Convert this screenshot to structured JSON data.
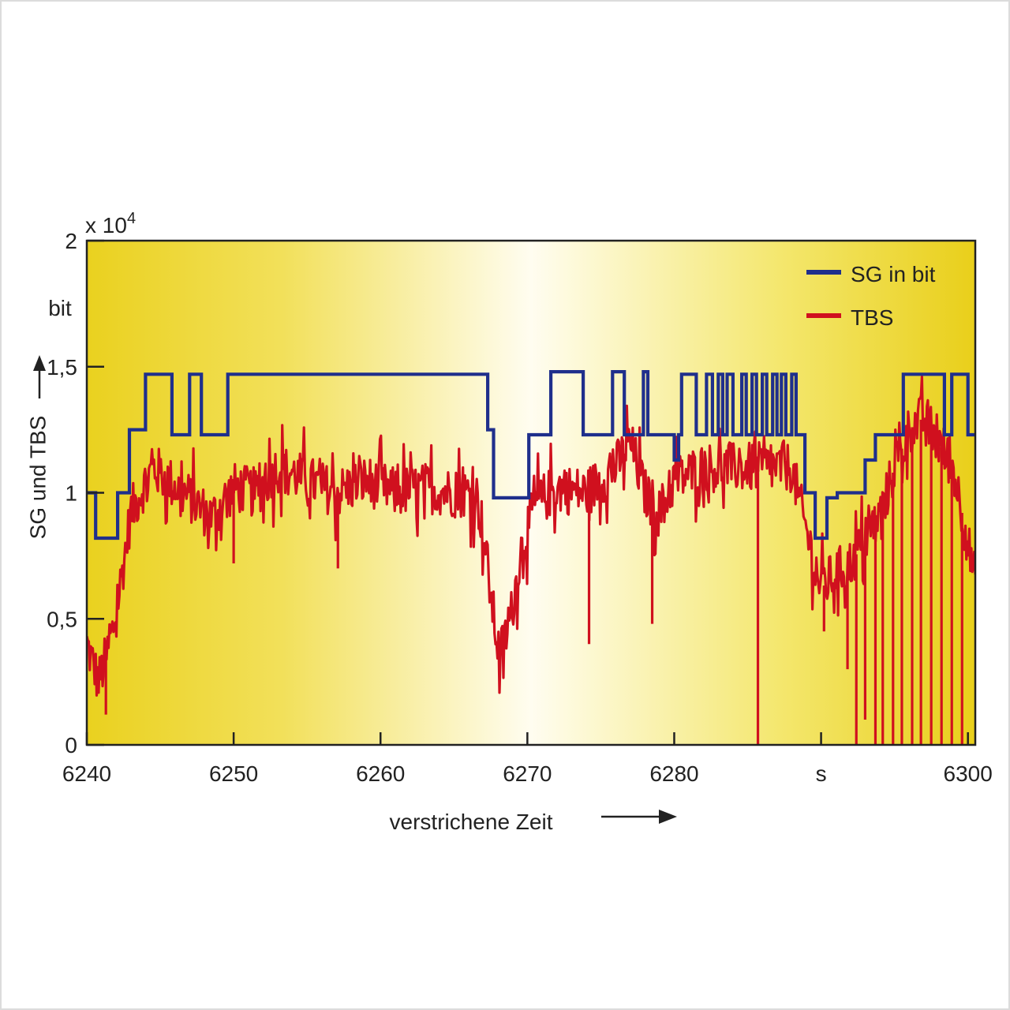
{
  "chart_data": {
    "type": "line",
    "exponent_label": {
      "base": "x 10",
      "power": "4"
    },
    "yunit": "bit",
    "ylabel": "SG und TBS",
    "xlabel": "verstrichene Zeit",
    "xunit": "s",
    "xlim": [
      6240,
      6300.5
    ],
    "ylim": [
      0,
      2
    ],
    "y_ticks": [
      {
        "value": 0,
        "label": "0"
      },
      {
        "value": 0.5,
        "label": "0,5"
      },
      {
        "value": 1,
        "label": "1"
      },
      {
        "value": 1.5,
        "label": "1,5"
      },
      {
        "value": 2,
        "label": "2"
      }
    ],
    "x_ticks": [
      {
        "value": 6240,
        "label": "6240"
      },
      {
        "value": 6250,
        "label": "6250"
      },
      {
        "value": 6260,
        "label": "6260"
      },
      {
        "value": 6270,
        "label": "6270"
      },
      {
        "value": 6280,
        "label": "6280"
      },
      {
        "value": 6290,
        "label": "s"
      },
      {
        "value": 6300,
        "label": "6300"
      }
    ],
    "grid": false,
    "legend": "top-right",
    "background": "yellow gradient, light in center",
    "series": [
      {
        "name": "SG in bit",
        "color": "#1f2f8c",
        "style": "step",
        "points": [
          [
            6240,
            1.0
          ],
          [
            6240.6,
            0.82
          ],
          [
            6242.1,
            1.0
          ],
          [
            6242.9,
            1.25
          ],
          [
            6244.0,
            1.47
          ],
          [
            6245.8,
            1.23
          ],
          [
            6247.0,
            1.47
          ],
          [
            6247.8,
            1.23
          ],
          [
            6249.6,
            1.47
          ],
          [
            6252.0,
            1.47
          ],
          [
            6256.0,
            1.47
          ],
          [
            6260.0,
            1.47
          ],
          [
            6264.0,
            1.47
          ],
          [
            6267.3,
            1.25
          ],
          [
            6267.7,
            0.98
          ],
          [
            6270.1,
            1.23
          ],
          [
            6271.6,
            1.48
          ],
          [
            6273.8,
            1.23
          ],
          [
            6275.8,
            1.48
          ],
          [
            6276.6,
            1.23
          ],
          [
            6277.9,
            1.48
          ],
          [
            6278.2,
            1.23
          ],
          [
            6280.0,
            1.13
          ],
          [
            6280.3,
            1.23
          ],
          [
            6280.5,
            1.47
          ],
          [
            6281.5,
            1.23
          ],
          [
            6282.2,
            1.47
          ],
          [
            6282.6,
            1.23
          ],
          [
            6283.0,
            1.47
          ],
          [
            6283.3,
            1.23
          ],
          [
            6283.6,
            1.47
          ],
          [
            6284.0,
            1.23
          ],
          [
            6284.6,
            1.47
          ],
          [
            6284.9,
            1.23
          ],
          [
            6285.3,
            1.47
          ],
          [
            6285.6,
            1.23
          ],
          [
            6286.0,
            1.47
          ],
          [
            6286.3,
            1.23
          ],
          [
            6286.7,
            1.47
          ],
          [
            6287.0,
            1.23
          ],
          [
            6287.3,
            1.47
          ],
          [
            6287.6,
            1.23
          ],
          [
            6288.0,
            1.47
          ],
          [
            6288.3,
            1.23
          ],
          [
            6288.9,
            1.0
          ],
          [
            6289.6,
            0.82
          ],
          [
            6290.4,
            0.98
          ],
          [
            6291.1,
            1.0
          ],
          [
            6292.3,
            1.0
          ],
          [
            6293.0,
            1.13
          ],
          [
            6293.7,
            1.23
          ],
          [
            6294.3,
            1.23
          ],
          [
            6295.6,
            1.47
          ],
          [
            6296.9,
            1.47
          ],
          [
            6297.7,
            1.47
          ],
          [
            6298.4,
            1.23
          ],
          [
            6298.9,
            1.47
          ],
          [
            6299.7,
            1.47
          ],
          [
            6300.0,
            1.23
          ],
          [
            6300.5,
            1.23
          ]
        ]
      },
      {
        "name": "TBS",
        "color": "#d0101e",
        "style": "noisy",
        "noise_amplitude": 0.2,
        "points": [
          [
            6240,
            0.4
          ],
          [
            6240.8,
            0.25
          ],
          [
            6241.6,
            0.4
          ],
          [
            6242.2,
            0.6
          ],
          [
            6243.0,
            0.92
          ],
          [
            6244.5,
            1.1
          ],
          [
            6245.5,
            1.05
          ],
          [
            6247.0,
            0.98
          ],
          [
            6248.5,
            0.9
          ],
          [
            6250.0,
            1.02
          ],
          [
            6251.5,
            1.0
          ],
          [
            6253.0,
            1.1
          ],
          [
            6255.0,
            1.05
          ],
          [
            6257.0,
            1.0
          ],
          [
            6259.0,
            1.05
          ],
          [
            6261.0,
            1.0
          ],
          [
            6263.0,
            1.02
          ],
          [
            6265.0,
            1.0
          ],
          [
            6266.5,
            1.0
          ],
          [
            6267.0,
            0.85
          ],
          [
            6267.6,
            0.55
          ],
          [
            6268.1,
            0.35
          ],
          [
            6268.8,
            0.48
          ],
          [
            6269.6,
            0.78
          ],
          [
            6270.5,
            0.95
          ],
          [
            6272.0,
            1.02
          ],
          [
            6274.0,
            1.0
          ],
          [
            6276.0,
            1.1
          ],
          [
            6277.0,
            1.2
          ],
          [
            6278.0,
            1.0
          ],
          [
            6279.0,
            0.92
          ],
          [
            6280.0,
            1.05
          ],
          [
            6282.0,
            1.1
          ],
          [
            6285.0,
            1.1
          ],
          [
            6288.0,
            1.1
          ],
          [
            6289.0,
            0.85
          ],
          [
            6290.0,
            0.62
          ],
          [
            6291.0,
            0.68
          ],
          [
            6292.0,
            0.72
          ],
          [
            6294.0,
            0.9
          ],
          [
            6295.0,
            1.1
          ],
          [
            6296.0,
            1.25
          ],
          [
            6297.0,
            1.3
          ],
          [
            6298.0,
            1.2
          ],
          [
            6299.0,
            1.1
          ],
          [
            6300.0,
            0.8
          ],
          [
            6300.5,
            0.65
          ]
        ],
        "drops": [
          {
            "x": 6241.3,
            "y": 0.12
          },
          {
            "x": 6250.0,
            "y": 0.72
          },
          {
            "x": 6257.1,
            "y": 0.7
          },
          {
            "x": 6274.2,
            "y": 0.4
          },
          {
            "x": 6278.5,
            "y": 0.48
          },
          {
            "x": 6285.7,
            "y": 0.0
          },
          {
            "x": 6290.2,
            "y": 0.45
          },
          {
            "x": 6291.8,
            "y": 0.3
          },
          {
            "x": 6292.4,
            "y": 0.0
          },
          {
            "x": 6293.0,
            "y": 0.1
          },
          {
            "x": 6293.7,
            "y": 0.0
          },
          {
            "x": 6294.2,
            "y": 0.0
          },
          {
            "x": 6294.9,
            "y": 0.0
          },
          {
            "x": 6295.5,
            "y": 0.0
          },
          {
            "x": 6296.2,
            "y": 0.0
          },
          {
            "x": 6296.8,
            "y": 0.0
          },
          {
            "x": 6297.5,
            "y": 0.0
          },
          {
            "x": 6298.2,
            "y": 0.0
          },
          {
            "x": 6298.9,
            "y": 0.0
          },
          {
            "x": 6299.6,
            "y": 0.0
          }
        ]
      }
    ]
  }
}
